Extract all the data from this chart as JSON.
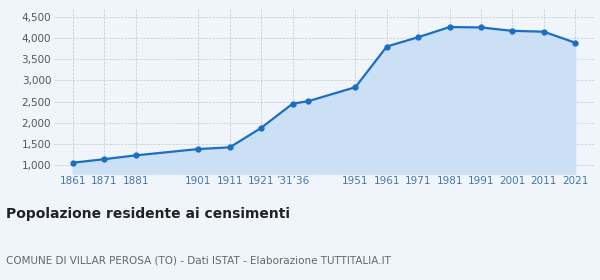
{
  "years": [
    1861,
    1871,
    1881,
    1901,
    1911,
    1921,
    1931,
    1936,
    1951,
    1961,
    1971,
    1981,
    1991,
    2001,
    2011,
    2021
  ],
  "population": [
    1057,
    1140,
    1230,
    1380,
    1420,
    1880,
    2450,
    2510,
    2840,
    3800,
    4020,
    4260,
    4250,
    4170,
    4150,
    3890
  ],
  "line_color": "#1a6ec4",
  "fill_color": "#cce0f5",
  "dot_color": "#1a6ec4",
  "background_color": "#f0f5fc",
  "grid_color": "#c8c8c8",
  "title": "Popolazione residente ai censimenti",
  "subtitle": "COMUNE DI VILLAR PEROSA (TO) - Dati ISTAT - Elaborazione TUTTITALIA.IT",
  "ylim": [
    800,
    4700
  ],
  "yticks": [
    1000,
    1500,
    2000,
    2500,
    3000,
    3500,
    4000,
    4500
  ],
  "xlim": [
    1855,
    2027
  ],
  "title_fontsize": 10,
  "subtitle_fontsize": 7.5,
  "tick_fontsize": 7.5,
  "tick_color": "#4477aa"
}
